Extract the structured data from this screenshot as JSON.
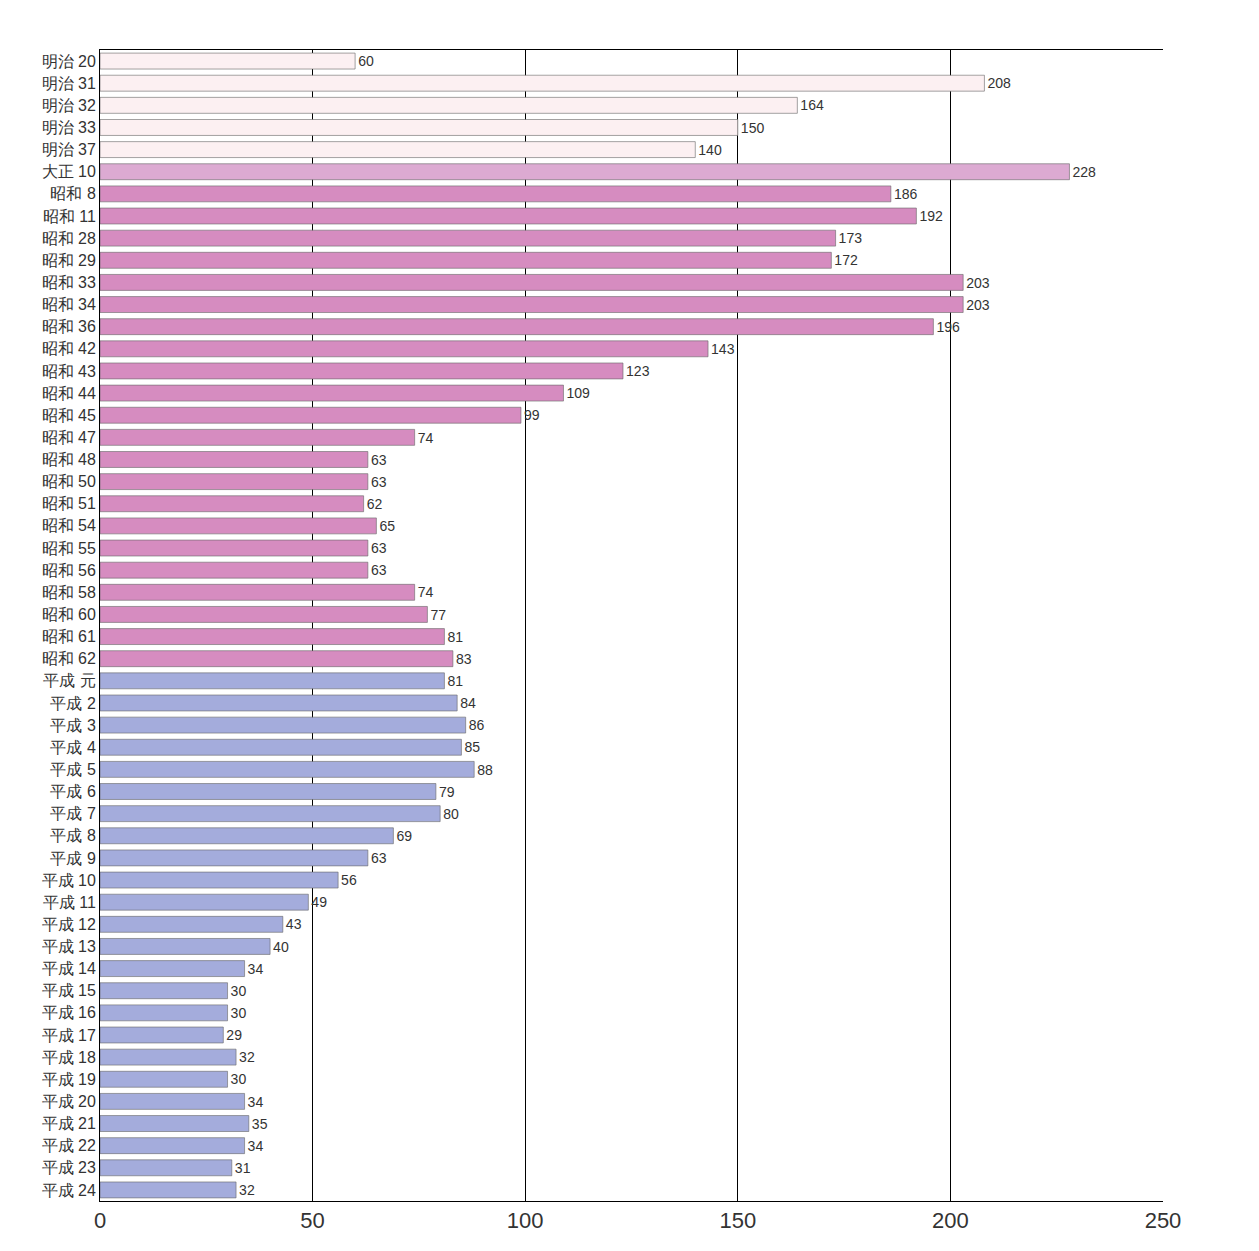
{
  "chart_data": {
    "type": "bar",
    "orientation": "horizontal",
    "categories": [
      "明治 20",
      "明治 31",
      "明治 32",
      "明治 33",
      "明治 37",
      "大正 10",
      "昭和 8",
      "昭和 11",
      "昭和 28",
      "昭和 29",
      "昭和 33",
      "昭和 34",
      "昭和 36",
      "昭和 42",
      "昭和 43",
      "昭和 44",
      "昭和 45",
      "昭和 47",
      "昭和 48",
      "昭和 50",
      "昭和 51",
      "昭和 54",
      "昭和 55",
      "昭和 56",
      "昭和 58",
      "昭和 60",
      "昭和 61",
      "昭和 62",
      "平成 元",
      "平成 2",
      "平成 3",
      "平成 4",
      "平成 5",
      "平成 6",
      "平成 7",
      "平成 8",
      "平成 9",
      "平成 10",
      "平成 11",
      "平成 12",
      "平成 13",
      "平成 14",
      "平成 15",
      "平成 16",
      "平成 17",
      "平成 18",
      "平成 19",
      "平成 20",
      "平成 21",
      "平成 22",
      "平成 23",
      "平成 24"
    ],
    "values": [
      60,
      208,
      164,
      150,
      140,
      228,
      186,
      192,
      173,
      172,
      203,
      203,
      196,
      143,
      123,
      109,
      99,
      74,
      63,
      63,
      62,
      65,
      63,
      63,
      74,
      77,
      81,
      83,
      81,
      84,
      86,
      85,
      88,
      79,
      80,
      69,
      63,
      56,
      49,
      43,
      40,
      34,
      30,
      30,
      29,
      32,
      30,
      34,
      35,
      34,
      31,
      32
    ],
    "colors": [
      "#fcf0f2",
      "#fcf0f2",
      "#fcf0f2",
      "#fcf0f2",
      "#fcf0f2",
      "#dcaad2",
      "#d68cc0",
      "#d68cc0",
      "#d68cc0",
      "#d68cc0",
      "#d68cc0",
      "#d68cc0",
      "#d68cc0",
      "#d68cc0",
      "#d68cc0",
      "#d68cc0",
      "#d68cc0",
      "#d68cc0",
      "#d68cc0",
      "#d68cc0",
      "#d68cc0",
      "#d68cc0",
      "#d68cc0",
      "#d68cc0",
      "#d68cc0",
      "#d68cc0",
      "#d68cc0",
      "#d68cc0",
      "#a4acdc",
      "#a4acdc",
      "#a4acdc",
      "#a4acdc",
      "#a4acdc",
      "#a4acdc",
      "#a4acdc",
      "#a4acdc",
      "#a4acdc",
      "#a4acdc",
      "#a4acdc",
      "#a4acdc",
      "#a4acdc",
      "#a4acdc",
      "#a4acdc",
      "#a4acdc",
      "#a4acdc",
      "#a4acdc",
      "#a4acdc",
      "#a4acdc",
      "#a4acdc",
      "#a4acdc",
      "#a4acdc",
      "#a4acdc"
    ],
    "xlim": [
      0,
      250
    ],
    "xticks": [
      0,
      50,
      100,
      150,
      200,
      250
    ],
    "grid": true,
    "data_labels": true
  }
}
